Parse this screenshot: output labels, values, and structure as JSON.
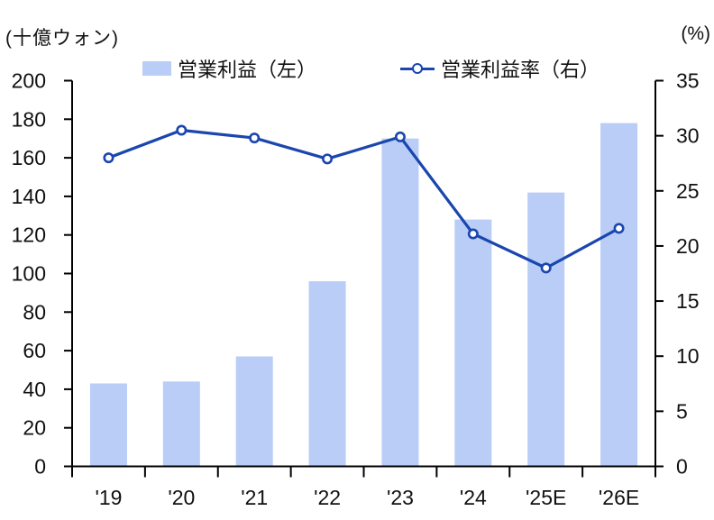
{
  "chart_data": {
    "type": "bar",
    "subtype": "combo-bar-line-dual-axis",
    "categories": [
      "'19",
      "'20",
      "'21",
      "'22",
      "'23",
      "'24",
      "'25E",
      "'26E"
    ],
    "series": [
      {
        "name": "営業利益（左）",
        "type": "bar",
        "axis": "left",
        "values": [
          43,
          44,
          57,
          96,
          170,
          128,
          142,
          178
        ],
        "color": "#B9CDF7"
      },
      {
        "name": "営業利益率（右）",
        "type": "line",
        "axis": "right",
        "values": [
          28.0,
          30.5,
          29.8,
          27.9,
          29.9,
          21.1,
          18.0,
          21.6
        ],
        "color": "#1A46AE",
        "marker": "circle",
        "marker_fill": "#FFFFFF"
      }
    ],
    "left_axis": {
      "unit": "(十億ウォン)",
      "min": 0,
      "max": 200,
      "step": 20
    },
    "right_axis": {
      "unit": "(%)",
      "min": 0,
      "max": 35,
      "step": 5
    },
    "axis_color": "#000000",
    "grid": false,
    "legend_position": "top",
    "title": ""
  }
}
